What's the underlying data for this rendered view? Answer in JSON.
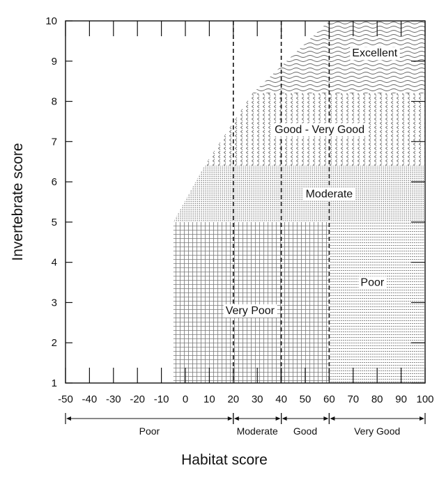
{
  "chart_data": {
    "type": "area",
    "xlabel": "Habitat score",
    "ylabel": "Invertebrate score",
    "xlim": [
      -50,
      100
    ],
    "ylim": [
      1,
      10
    ],
    "x_ticks": [
      "-50",
      "-40",
      "-30",
      "-20",
      "-10",
      "0",
      "10",
      "20",
      "30",
      "40",
      "50",
      "60",
      "70",
      "80",
      "90",
      "100"
    ],
    "y_ticks": [
      "1",
      "2",
      "3",
      "4",
      "5",
      "6",
      "7",
      "8",
      "9",
      "10"
    ],
    "boundaries_x": [
      20,
      40,
      60
    ],
    "regions": [
      {
        "name": "Very Poor",
        "polygon": [
          [
            -5,
            1
          ],
          [
            60,
            1
          ],
          [
            60,
            5
          ],
          [
            -5,
            5
          ]
        ],
        "label_at": [
          27,
          2.8
        ]
      },
      {
        "name": "Poor",
        "polygon": [
          [
            60,
            1
          ],
          [
            100,
            1
          ],
          [
            100,
            5
          ],
          [
            60,
            5
          ]
        ],
        "label_at": [
          78,
          3.5
        ]
      },
      {
        "name": "Moderate",
        "polygon": [
          [
            -5,
            5
          ],
          [
            100,
            5
          ],
          [
            100,
            6.4
          ],
          [
            8,
            6.4
          ]
        ],
        "label_at": [
          60,
          5.7
        ]
      },
      {
        "name": "Good - Very Good",
        "polygon": [
          [
            8,
            6.4
          ],
          [
            100,
            6.4
          ],
          [
            100,
            8.2
          ],
          [
            28,
            8.2
          ]
        ],
        "label_at": [
          56,
          7.3
        ]
      },
      {
        "name": "Excellent",
        "polygon": [
          [
            28,
            8.2
          ],
          [
            100,
            8.2
          ],
          [
            100,
            10
          ],
          [
            60,
            10
          ]
        ],
        "label_at": [
          79,
          9.2
        ]
      }
    ],
    "habitat_classes": [
      {
        "name": "Poor",
        "from": -50,
        "to": 20
      },
      {
        "name": "Moderate",
        "from": 20,
        "to": 40
      },
      {
        "name": "Good",
        "from": 40,
        "to": 60
      },
      {
        "name": "Very Good",
        "from": 60,
        "to": 100
      }
    ]
  }
}
